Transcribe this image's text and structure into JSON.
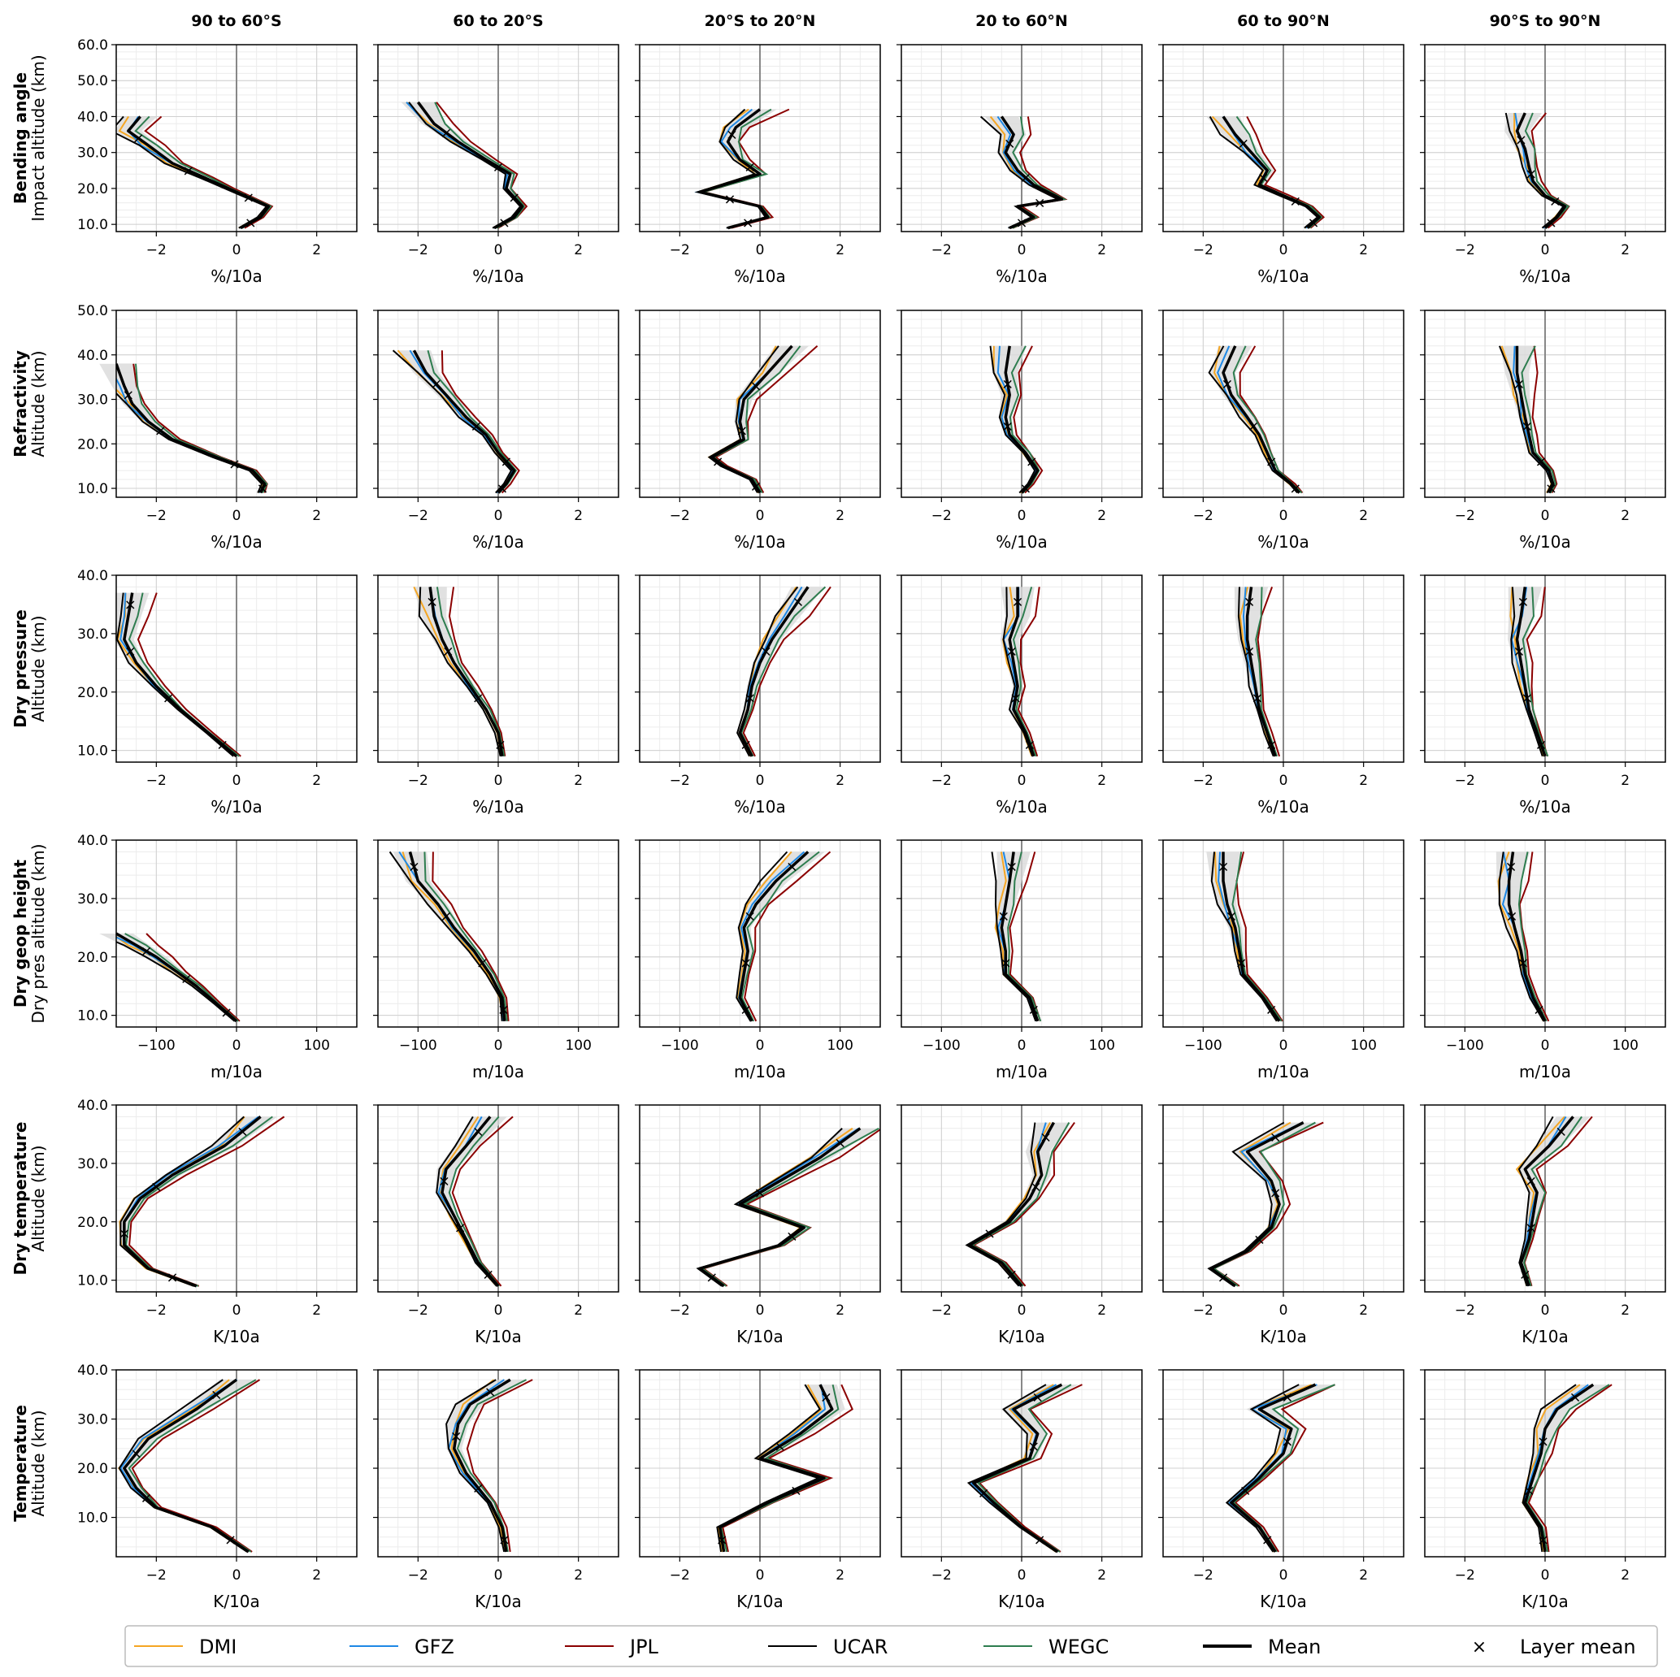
{
  "columns": [
    "90 to 60°S",
    "60 to 20°S",
    "20°S to 20°N",
    "20 to 60°N",
    "60 to 90°N",
    "90°S to 90°N"
  ],
  "rows": [
    {
      "name": "Bending angle",
      "ylabel": "Impact altitude (km)",
      "unit": "%/10a",
      "xlim": [
        -3,
        3
      ],
      "xticks": [
        -2,
        0,
        2
      ],
      "ylim": [
        8,
        60
      ],
      "yticks": [
        10.0,
        20.0,
        30.0,
        40.0,
        50.0,
        60.0
      ]
    },
    {
      "name": "Refractivity",
      "ylabel": "Altitude (km)",
      "unit": "%/10a",
      "xlim": [
        -3,
        3
      ],
      "xticks": [
        -2,
        0,
        2
      ],
      "ylim": [
        8,
        50
      ],
      "yticks": [
        10.0,
        20.0,
        30.0,
        40.0,
        50.0
      ]
    },
    {
      "name": "Dry pressure",
      "ylabel": "Altitude (km)",
      "unit": "%/10a",
      "xlim": [
        -3,
        3
      ],
      "xticks": [
        -2,
        0,
        2
      ],
      "ylim": [
        8,
        40
      ],
      "yticks": [
        10.0,
        20.0,
        30.0,
        40.0
      ]
    },
    {
      "name": "Dry geop height",
      "ylabel": "Dry pres altitude (km)",
      "unit": "m/10a",
      "xlim": [
        -150,
        150
      ],
      "xticks": [
        -100,
        0,
        100
      ],
      "ylim": [
        8,
        40
      ],
      "yticks": [
        10.0,
        20.0,
        30.0,
        40.0
      ]
    },
    {
      "name": "Dry temperature",
      "ylabel": "Altitude (km)",
      "unit": "K/10a",
      "xlim": [
        -3,
        3
      ],
      "xticks": [
        -2,
        0,
        2
      ],
      "ylim": [
        8,
        40
      ],
      "yticks": [
        10.0,
        20.0,
        30.0,
        40.0
      ]
    },
    {
      "name": "Temperature",
      "ylabel": "Altitude (km)",
      "unit": "K/10a",
      "xlim": [
        -3,
        3
      ],
      "xticks": [
        -2,
        0,
        2
      ],
      "ylim": [
        2,
        40
      ],
      "yticks": [
        10.0,
        20.0,
        30.0,
        40.0
      ]
    }
  ],
  "legend": [
    {
      "label": "DMI",
      "color": "#f5a623",
      "style": "thin"
    },
    {
      "label": "GFZ",
      "color": "#1e88e5",
      "style": "thin"
    },
    {
      "label": "JPL",
      "color": "#8b0000",
      "style": "thin"
    },
    {
      "label": "UCAR",
      "color": "#000000",
      "style": "thin"
    },
    {
      "label": "WEGC",
      "color": "#2e7d4f",
      "style": "thin"
    },
    {
      "label": "Mean",
      "color": "#000000",
      "style": "thick"
    },
    {
      "label": "Layer mean",
      "color": "#000000",
      "style": "marker",
      "glyph": "×"
    }
  ],
  "chart_data": {
    "type": "line",
    "layout": "6 rows x 6 columns of vertical trend profiles",
    "grid": true,
    "legend_placement": "bottom",
    "band": "grey shaded spread of the five centres around the mean",
    "note": "Approximate mean trend profiles (x = trend, y = altitude km)",
    "series": [
      {
        "row": 0,
        "col": 0,
        "name": "Mean",
        "x": [
          0.1,
          0.6,
          0.8,
          -0.2,
          -0.8,
          -1.6,
          -2.2,
          -2.7,
          -2.4
        ],
        "y": [
          9,
          12,
          15,
          20,
          23,
          27,
          32,
          36,
          40
        ]
      },
      {
        "row": 0,
        "col": 1,
        "name": "Mean",
        "x": [
          -0.1,
          0.4,
          0.6,
          0.2,
          0.3,
          -0.3,
          -1.0,
          -1.6,
          -2.0
        ],
        "y": [
          9,
          12,
          15,
          20,
          24,
          28,
          33,
          38,
          44
        ]
      },
      {
        "row": 0,
        "col": 2,
        "name": "Mean",
        "x": [
          -0.8,
          0.2,
          0.0,
          -1.5,
          0.0,
          -0.5,
          -0.8,
          -0.6,
          0.0
        ],
        "y": [
          9,
          12,
          15,
          19,
          24,
          28,
          33,
          37,
          42
        ]
      },
      {
        "row": 0,
        "col": 3,
        "name": "Mean",
        "x": [
          -0.3,
          0.3,
          -0.1,
          1.0,
          0.3,
          -0.1,
          -0.4,
          -0.2,
          -0.5
        ],
        "y": [
          9,
          12,
          15,
          17,
          21,
          25,
          30,
          35,
          40
        ]
      },
      {
        "row": 0,
        "col": 4,
        "name": "Mean",
        "x": [
          0.6,
          0.9,
          0.6,
          0.0,
          -0.6,
          -0.4,
          -0.8,
          -1.2,
          -1.5
        ],
        "y": [
          9,
          12,
          15,
          18,
          21,
          25,
          30,
          35,
          40
        ]
      },
      {
        "row": 0,
        "col": 5,
        "name": "Mean",
        "x": [
          0.0,
          0.3,
          0.5,
          0.0,
          -0.3,
          -0.4,
          -0.5,
          -0.7,
          -0.5
        ],
        "y": [
          9,
          12,
          15,
          18,
          22,
          26,
          31,
          36,
          41
        ]
      },
      {
        "row": 1,
        "col": 0,
        "name": "Mean",
        "x": [
          0.6,
          0.7,
          0.4,
          -0.5,
          -1.6,
          -2.2,
          -2.6,
          -2.8,
          -3.0
        ],
        "y": [
          9,
          11,
          14,
          17,
          21,
          25,
          29,
          33,
          38
        ]
      },
      {
        "row": 1,
        "col": 1,
        "name": "Mean",
        "x": [
          0.0,
          0.2,
          0.4,
          0.0,
          -0.3,
          -0.8,
          -1.3,
          -1.8,
          -2.1
        ],
        "y": [
          9,
          11,
          14,
          18,
          22,
          26,
          31,
          36,
          41
        ]
      },
      {
        "row": 1,
        "col": 2,
        "name": "Mean",
        "x": [
          0.0,
          -0.2,
          -0.9,
          -1.2,
          -0.4,
          -0.5,
          -0.4,
          0.2,
          0.8
        ],
        "y": [
          9,
          12,
          15,
          17,
          21,
          25,
          30,
          36,
          42
        ]
      },
      {
        "row": 1,
        "col": 3,
        "name": "Mean",
        "x": [
          0.0,
          0.2,
          0.4,
          0.1,
          -0.3,
          -0.4,
          -0.3,
          -0.4,
          -0.3
        ],
        "y": [
          9,
          11,
          14,
          18,
          22,
          26,
          31,
          36,
          42
        ]
      },
      {
        "row": 1,
        "col": 4,
        "name": "Mean",
        "x": [
          0.4,
          0.2,
          -0.2,
          -0.4,
          -0.6,
          -0.9,
          -1.3,
          -1.5,
          -1.2
        ],
        "y": [
          9,
          11,
          14,
          18,
          22,
          26,
          31,
          36,
          42
        ]
      },
      {
        "row": 1,
        "col": 5,
        "name": "Mean",
        "x": [
          0.1,
          0.2,
          0.1,
          -0.3,
          -0.4,
          -0.5,
          -0.6,
          -0.7,
          -0.7
        ],
        "y": [
          9,
          11,
          14,
          18,
          22,
          26,
          31,
          36,
          42
        ]
      },
      {
        "row": 2,
        "col": 0,
        "name": "Mean",
        "x": [
          0.0,
          -0.7,
          -1.4,
          -2.0,
          -2.5,
          -2.8,
          -2.7,
          -2.6
        ],
        "y": [
          9,
          13,
          17,
          21,
          25,
          29,
          33,
          37
        ]
      },
      {
        "row": 2,
        "col": 1,
        "name": "Mean",
        "x": [
          0.1,
          0.0,
          -0.3,
          -0.7,
          -1.1,
          -1.4,
          -1.6,
          -1.7
        ],
        "y": [
          9,
          13,
          17,
          21,
          25,
          29,
          33,
          38
        ]
      },
      {
        "row": 2,
        "col": 2,
        "name": "Mean",
        "x": [
          -0.2,
          -0.5,
          -0.3,
          -0.2,
          0.0,
          0.3,
          0.7,
          1.2
        ],
        "y": [
          9,
          13,
          17,
          21,
          25,
          29,
          33,
          38
        ]
      },
      {
        "row": 2,
        "col": 3,
        "name": "Mean",
        "x": [
          0.3,
          0.1,
          -0.2,
          -0.1,
          -0.2,
          -0.3,
          -0.1,
          -0.1
        ],
        "y": [
          9,
          13,
          17,
          21,
          25,
          29,
          33,
          38
        ]
      },
      {
        "row": 2,
        "col": 4,
        "name": "Mean",
        "x": [
          -0.2,
          -0.4,
          -0.6,
          -0.7,
          -0.8,
          -0.9,
          -0.9,
          -0.8
        ],
        "y": [
          9,
          13,
          17,
          21,
          25,
          29,
          33,
          38
        ]
      },
      {
        "row": 2,
        "col": 5,
        "name": "Mean",
        "x": [
          0.0,
          -0.2,
          -0.4,
          -0.5,
          -0.6,
          -0.7,
          -0.6,
          -0.5
        ],
        "y": [
          9,
          13,
          17,
          21,
          25,
          29,
          33,
          38
        ]
      },
      {
        "row": 3,
        "col": 0,
        "name": "Mean",
        "x": [
          0,
          -25,
          -50,
          -75,
          -100,
          -125,
          -150
        ],
        "y": [
          9,
          12,
          15,
          17.5,
          20,
          22,
          24
        ]
      },
      {
        "row": 3,
        "col": 1,
        "name": "Mean",
        "x": [
          8,
          5,
          -10,
          -30,
          -55,
          -75,
          -100,
          -110
        ],
        "y": [
          9,
          13,
          17,
          21,
          25,
          29,
          33,
          38
        ]
      },
      {
        "row": 3,
        "col": 2,
        "name": "Mean",
        "x": [
          -10,
          -25,
          -20,
          -15,
          -20,
          -5,
          20,
          60
        ],
        "y": [
          9,
          13,
          17,
          21,
          25,
          29,
          33,
          38
        ]
      },
      {
        "row": 3,
        "col": 3,
        "name": "Mean",
        "x": [
          20,
          10,
          -20,
          -20,
          -25,
          -20,
          -15,
          -10
        ],
        "y": [
          9,
          13,
          17,
          21,
          25,
          29,
          33,
          38
        ]
      },
      {
        "row": 3,
        "col": 4,
        "name": "Mean",
        "x": [
          -5,
          -25,
          -50,
          -55,
          -60,
          -70,
          -75,
          -75
        ],
        "y": [
          9,
          13,
          17,
          21,
          25,
          29,
          33,
          38
        ]
      },
      {
        "row": 3,
        "col": 5,
        "name": "Mean",
        "x": [
          0,
          -15,
          -25,
          -30,
          -38,
          -45,
          -45,
          -40
        ],
        "y": [
          9,
          13,
          17,
          21,
          25,
          29,
          33,
          38
        ]
      },
      {
        "row": 4,
        "col": 0,
        "name": "Mean",
        "x": [
          -1.0,
          -2.2,
          -2.8,
          -2.8,
          -2.4,
          -1.6,
          -0.3,
          0.6
        ],
        "y": [
          9,
          12,
          16,
          20,
          24,
          28,
          33,
          38
        ]
      },
      {
        "row": 4,
        "col": 1,
        "name": "Mean",
        "x": [
          0.0,
          -0.5,
          -0.8,
          -1.1,
          -1.4,
          -1.3,
          -0.8,
          -0.2
        ],
        "y": [
          9,
          13,
          17,
          21,
          25,
          29,
          33,
          38
        ]
      },
      {
        "row": 4,
        "col": 2,
        "name": "Mean",
        "x": [
          -0.9,
          -1.5,
          0.5,
          1.1,
          -0.5,
          0.5,
          1.5,
          2.5
        ],
        "y": [
          9,
          12,
          16,
          19,
          23,
          27,
          31,
          36
        ]
      },
      {
        "row": 4,
        "col": 3,
        "name": "Mean",
        "x": [
          0.0,
          -0.5,
          -1.3,
          -0.3,
          0.2,
          0.5,
          0.4,
          0.8
        ],
        "y": [
          9,
          13,
          16,
          20,
          24,
          28,
          32,
          37
        ]
      },
      {
        "row": 4,
        "col": 4,
        "name": "Mean",
        "x": [
          -1.2,
          -1.8,
          -0.9,
          -0.3,
          -0.1,
          -0.3,
          -0.9,
          0.5
        ],
        "y": [
          9,
          12,
          15,
          19,
          23,
          27,
          32,
          37
        ]
      },
      {
        "row": 4,
        "col": 5,
        "name": "Mean",
        "x": [
          -0.4,
          -0.6,
          -0.4,
          -0.3,
          -0.2,
          -0.5,
          0.1,
          0.7
        ],
        "y": [
          9,
          13,
          17,
          21,
          25,
          29,
          33,
          38
        ]
      },
      {
        "row": 5,
        "col": 0,
        "name": "Mean",
        "x": [
          0.3,
          -0.6,
          -2.0,
          -2.5,
          -2.8,
          -2.2,
          -1.0,
          0.0
        ],
        "y": [
          3,
          8,
          12,
          16,
          20,
          26,
          32,
          38
        ]
      },
      {
        "row": 5,
        "col": 1,
        "name": "Mean",
        "x": [
          0.2,
          0.1,
          -0.2,
          -0.8,
          -1.1,
          -1.0,
          -0.7,
          0.3
        ],
        "y": [
          3,
          8,
          13,
          19,
          24,
          29,
          33,
          38
        ]
      },
      {
        "row": 5,
        "col": 2,
        "name": "Mean",
        "x": [
          -0.9,
          -1.0,
          0.2,
          1.6,
          0.0,
          1.0,
          1.8,
          1.5
        ],
        "y": [
          3,
          8,
          13,
          18,
          22,
          27,
          32,
          37
        ]
      },
      {
        "row": 5,
        "col": 3,
        "name": "Mean",
        "x": [
          0.9,
          0.0,
          -0.7,
          -1.2,
          0.2,
          0.4,
          -0.2,
          1.0
        ],
        "y": [
          3,
          8,
          13,
          17,
          22,
          27,
          32,
          37
        ]
      },
      {
        "row": 5,
        "col": 4,
        "name": "Mean",
        "x": [
          -0.2,
          -0.6,
          -1.3,
          -0.6,
          0.0,
          0.2,
          -0.6,
          0.8
        ],
        "y": [
          3,
          8,
          13,
          18,
          23,
          28,
          32,
          37
        ]
      },
      {
        "row": 5,
        "col": 5,
        "name": "Mean",
        "x": [
          0.0,
          -0.1,
          -0.5,
          -0.3,
          -0.1,
          0.0,
          0.3,
          1.2
        ],
        "y": [
          3,
          8,
          13,
          18,
          23,
          28,
          32,
          37
        ]
      }
    ]
  }
}
